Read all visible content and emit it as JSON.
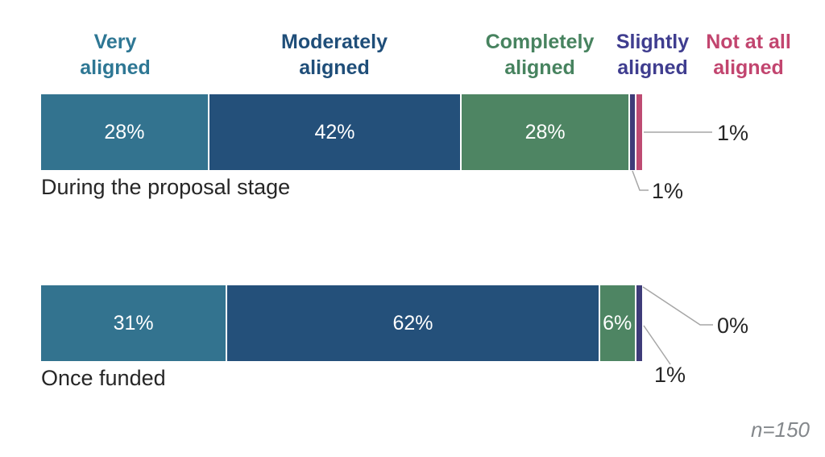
{
  "chart_data": {
    "type": "bar",
    "orientation": "horizontal_stacked",
    "unit": "%",
    "title": "",
    "categories": [
      "During the proposal stage",
      "Once funded"
    ],
    "series": [
      {
        "name": "Very aligned",
        "color": "#33738F",
        "label_color": "#2E7794",
        "values": [
          28,
          31
        ]
      },
      {
        "name": "Moderately aligned",
        "color": "#24507A",
        "label_color": "#1F4E79",
        "values": [
          42,
          62
        ]
      },
      {
        "name": "Completely aligned",
        "color": "#4E8563",
        "label_color": "#47835F",
        "values": [
          28,
          6
        ]
      },
      {
        "name": "Slightly aligned",
        "color": "#3E3C79",
        "label_color": "#3F3D8F",
        "values": [
          1,
          1
        ]
      },
      {
        "name": "Not at all aligned",
        "color": "#BE4B72",
        "label_color": "#C2456F",
        "values": [
          1,
          0
        ]
      }
    ],
    "xlim": [
      0,
      100
    ],
    "grid": false,
    "legend_position": "top",
    "value_labels_inside": true,
    "label_min_value": 6,
    "note": "n=150"
  },
  "callouts": {
    "bar0_notatall": "1%",
    "bar0_slightly": "1%",
    "bar1_notatall": "0%",
    "bar1_slightly": "1%"
  }
}
